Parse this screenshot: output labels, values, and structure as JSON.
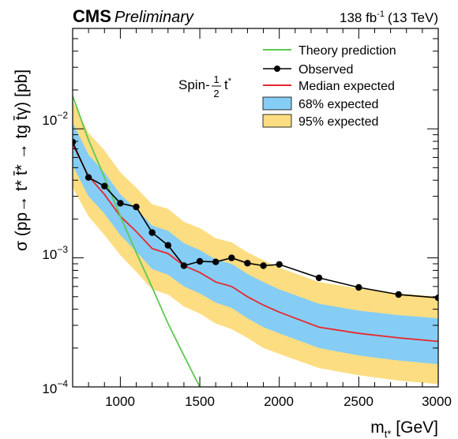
{
  "header": {
    "experiment": "CMS",
    "status": "Preliminary",
    "luminosity": "138 fb",
    "lumi_exponent": "-1",
    "energy": "(13 TeV)"
  },
  "signal_label": {
    "prefix": "Spin-",
    "frac_num": "1",
    "frac_den": "2",
    "particle": "t",
    "particle_sup": "*"
  },
  "axes": {
    "x_label": "m",
    "x_label_sub": "t*",
    "x_label_unit": " [GeV]",
    "y_label": "σ (pp→ t* t̄* → tg t̄γ) [pb]",
    "x_ticks": [
      "1000",
      "1500",
      "2000",
      "2500",
      "3000"
    ],
    "y_ticks": [
      {
        "base": "10",
        "exp": "−2"
      },
      {
        "base": "10",
        "exp": "−3"
      },
      {
        "base": "10",
        "exp": "−4"
      }
    ]
  },
  "legend": {
    "theory": "Theory prediction",
    "observed": "Observed",
    "median": "Median expected",
    "band68": "68% expected",
    "band95": "95% expected"
  },
  "colors": {
    "theory": "#5cc950",
    "observed": "#000000",
    "median": "#e8282d",
    "band68": "#85cdf5",
    "band95": "#fcdd82"
  },
  "chart_data": {
    "type": "line",
    "x_scale": "linear",
    "y_scale": "log",
    "xlim": [
      700,
      3000
    ],
    "ylim": [
      0.0001,
      0.06
    ],
    "x_mass": [
      700,
      800,
      900,
      1000,
      1100,
      1200,
      1300,
      1400,
      1500,
      1600,
      1700,
      1800,
      1900,
      2000,
      2250,
      2500,
      2750,
      3000
    ],
    "series": [
      {
        "name": "Observed",
        "x": [
          700,
          800,
          900,
          1000,
          1100,
          1200,
          1300,
          1400,
          1500,
          1600,
          1700,
          1800,
          1900,
          2000,
          2250,
          2500,
          2750,
          3000
        ],
        "y": [
          0.0079,
          0.0042,
          0.0036,
          0.00265,
          0.00248,
          0.00157,
          0.00125,
          0.00087,
          0.00094,
          0.00093,
          0.001,
          0.00091,
          0.00087,
          0.00089,
          0.0007,
          0.00059,
          0.00052,
          0.00049
        ]
      },
      {
        "name": "Median expected",
        "x": [
          700,
          800,
          900,
          1000,
          1100,
          1200,
          1300,
          1400,
          1500,
          1600,
          1700,
          1800,
          1900,
          2000,
          2250,
          2500,
          2750,
          3000
        ],
        "y": [
          0.0076,
          0.0043,
          0.0031,
          0.0021,
          0.0016,
          0.00118,
          0.00108,
          0.00087,
          0.00077,
          0.00065,
          0.0006,
          0.0005,
          0.00043,
          0.00038,
          0.00029,
          0.00026,
          0.00024,
          0.000225
        ]
      },
      {
        "name": "68% expected",
        "x": [
          700,
          800,
          900,
          1000,
          1100,
          1200,
          1300,
          1400,
          1500,
          1600,
          1700,
          1800,
          1900,
          2000,
          2250,
          2500,
          2750,
          3000
        ],
        "low": [
          0.0052,
          0.003,
          0.0022,
          0.0015,
          0.00112,
          0.00082,
          0.00074,
          0.0006,
          0.00053,
          0.00045,
          0.00041,
          0.00034,
          0.00029,
          0.00026,
          0.0002,
          0.000175,
          0.00016,
          0.00015
        ],
        "high": [
          0.0112,
          0.0063,
          0.0046,
          0.0031,
          0.0024,
          0.00178,
          0.00162,
          0.0013,
          0.00115,
          0.00097,
          0.0009,
          0.00075,
          0.00065,
          0.00057,
          0.00044,
          0.00039,
          0.00036,
          0.00034
        ]
      },
      {
        "name": "95% expected",
        "x": [
          700,
          800,
          900,
          1000,
          1100,
          1200,
          1300,
          1400,
          1500,
          1600,
          1700,
          1800,
          1900,
          2000,
          2250,
          2500,
          2750,
          3000
        ],
        "low": [
          0.0035,
          0.0021,
          0.0015,
          0.00105,
          0.00078,
          0.00057,
          0.00052,
          0.00042,
          0.00037,
          0.00031,
          0.00028,
          0.00024,
          0.0002,
          0.00018,
          0.00014,
          0.000123,
          0.000112,
          0.000105
        ],
        "high": [
          0.0165,
          0.0093,
          0.0068,
          0.0046,
          0.0035,
          0.0026,
          0.0024,
          0.0019,
          0.0017,
          0.00142,
          0.00132,
          0.0011,
          0.00096,
          0.00084,
          0.00065,
          0.00058,
          0.00053,
          0.0005
        ]
      },
      {
        "name": "Theory prediction",
        "x": [
          700,
          800,
          900,
          1000,
          1100,
          1200,
          1300,
          1400,
          1500
        ],
        "y": [
          0.018,
          0.0082,
          0.0042,
          0.0021,
          0.0011,
          0.00059,
          0.00031,
          0.000175,
          0.0001
        ]
      }
    ]
  }
}
